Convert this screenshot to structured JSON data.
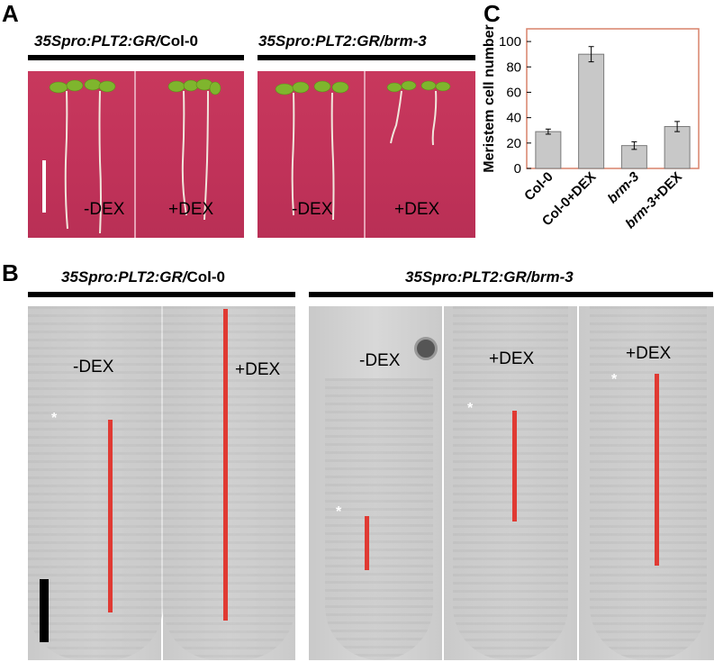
{
  "panels": {
    "a_label": "A",
    "b_label": "B",
    "c_label": "C"
  },
  "panel_a": {
    "left_genotype_italic": "35Spro:PLT2:GR/",
    "left_genotype_plain": "Col-0",
    "right_genotype_italic": "35Spro:PLT2:GR/brm-3",
    "treatments": [
      "-DEX",
      "+DEX",
      "-DEX",
      "+DEX"
    ]
  },
  "panel_b": {
    "left_genotype_italic": "35Spro:PLT2:GR/",
    "left_genotype_plain": "Col-0",
    "right_genotype_italic": "35Spro:PLT2:GR/brm-3",
    "treatments": [
      "-DEX",
      "+DEX",
      "-DEX",
      "+DEX",
      "+DEX"
    ],
    "asterisk": "*"
  },
  "chart_data": {
    "type": "bar",
    "categories": [
      "Col-0",
      "Col-0+DEX",
      "brm-3",
      "brm-3+DEX"
    ],
    "values": [
      29,
      90,
      18,
      33
    ],
    "errors": [
      2,
      6,
      3,
      4
    ],
    "ylabel": "Meristem cell number",
    "ylim": [
      0,
      110
    ],
    "yticks": [
      0,
      20,
      40,
      60,
      80,
      100
    ],
    "grid": false,
    "colors": {
      "bar": "#c8c8c8",
      "bar_edge": "#7a7a7a",
      "frame": "#d9826a"
    }
  }
}
